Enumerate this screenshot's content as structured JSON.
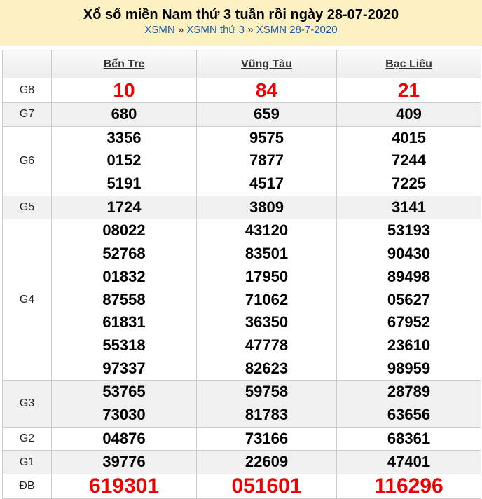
{
  "header": {
    "title": "Xổ số miền Nam thứ 3 tuần rồi ngày 28-07-2020",
    "breadcrumb": [
      "XSMN",
      "XSMN thứ 3",
      "XSMN 28-7-2020"
    ],
    "separator": "»"
  },
  "provinces": [
    "Bến Tre",
    "Vũng Tàu",
    "Bạc Liêu"
  ],
  "prizes": [
    {
      "label": "G8",
      "values": [
        [
          "10"
        ],
        [
          "84"
        ],
        [
          "21"
        ]
      ]
    },
    {
      "label": "G7",
      "values": [
        [
          "680"
        ],
        [
          "659"
        ],
        [
          "409"
        ]
      ]
    },
    {
      "label": "G6",
      "values": [
        [
          "3356",
          "0152",
          "5191"
        ],
        [
          "9575",
          "7877",
          "4517"
        ],
        [
          "4015",
          "7244",
          "7225"
        ]
      ]
    },
    {
      "label": "G5",
      "values": [
        [
          "1724"
        ],
        [
          "3809"
        ],
        [
          "3141"
        ]
      ]
    },
    {
      "label": "G4",
      "values": [
        [
          "08022",
          "52768",
          "01832",
          "87558",
          "61831",
          "55318",
          "97337"
        ],
        [
          "43120",
          "83501",
          "17950",
          "71062",
          "36350",
          "47778",
          "82623"
        ],
        [
          "53193",
          "90430",
          "89498",
          "05627",
          "67952",
          "23610",
          "98959"
        ]
      ]
    },
    {
      "label": "G3",
      "values": [
        [
          "53765",
          "73030"
        ],
        [
          "59758",
          "81783"
        ],
        [
          "28789",
          "63656"
        ]
      ]
    },
    {
      "label": "G2",
      "values": [
        [
          "04876"
        ],
        [
          "73166"
        ],
        [
          "68361"
        ]
      ]
    },
    {
      "label": "G1",
      "values": [
        [
          "39776"
        ],
        [
          "22609"
        ],
        [
          "47401"
        ]
      ]
    },
    {
      "label": "ĐB",
      "values": [
        [
          "619301"
        ],
        [
          "051601"
        ],
        [
          "116296"
        ]
      ]
    }
  ],
  "colors": {
    "header_bg": "#fdf1c3",
    "highlight": "#ee0000",
    "link": "#1a5aa8"
  }
}
